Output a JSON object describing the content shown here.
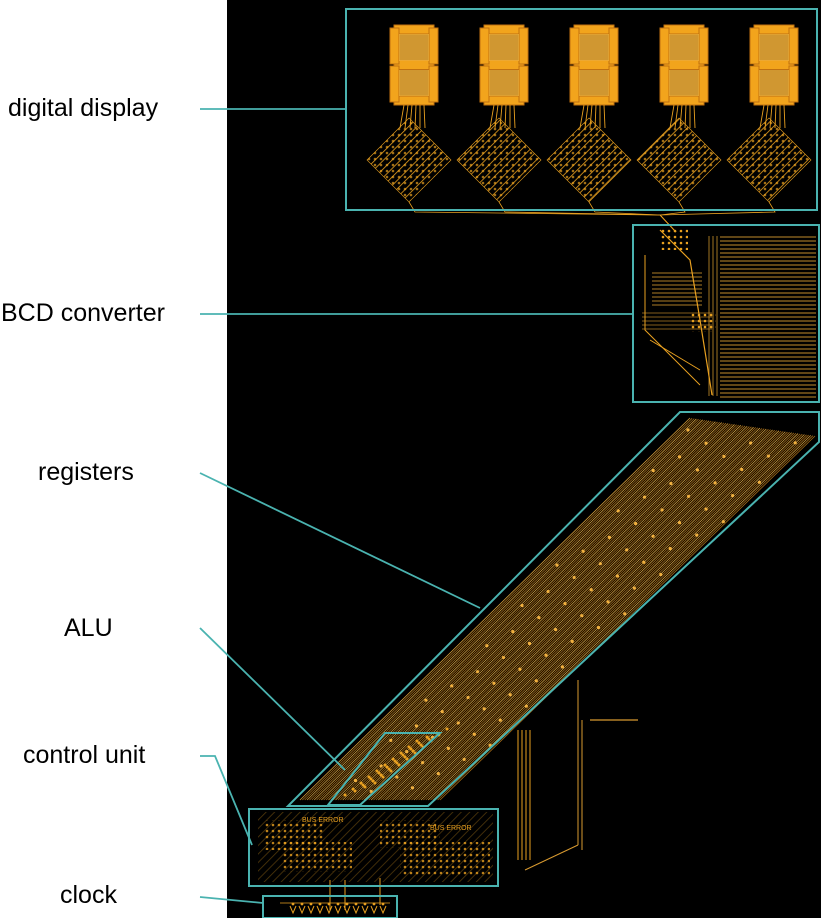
{
  "labels": {
    "digital_display": "digital display",
    "bcd_converter": "BCD converter",
    "registers": "registers",
    "alu": "ALU",
    "control_unit": "control unit",
    "clock": "clock"
  },
  "board_text": {
    "bus_error": "BUS ERROR"
  },
  "colors": {
    "background": "#000000",
    "copper": "#e8a020",
    "copper_dim": "#b8781a",
    "outline": "#4ab3b0",
    "page": "#ffffff"
  },
  "display": {
    "digit_count": 5
  }
}
